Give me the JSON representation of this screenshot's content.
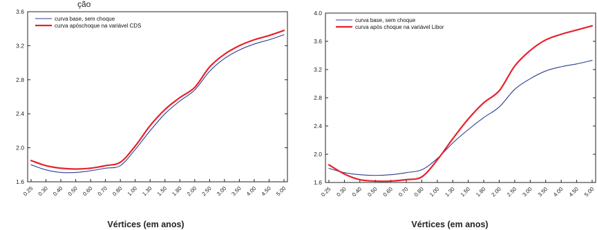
{
  "top_text": "ção",
  "chart_data": [
    {
      "type": "line",
      "title": "",
      "xlabel": "Vértices (em anos)",
      "ylabel": "",
      "ylim": [
        1.6,
        3.6
      ],
      "yticks": [
        "1.6",
        "2.0",
        "2.4",
        "2.8",
        "3.2",
        "3.6"
      ],
      "categories": [
        "0.25",
        "0.30",
        "0.40",
        "0.50",
        "0.60",
        "0.70",
        "0.80",
        "1.00",
        "1.30",
        "1.50",
        "1.80",
        "2.00",
        "2.50",
        "3.00",
        "3.50",
        "4.00",
        "4.50",
        "5.00"
      ],
      "grid": false,
      "legend": "top-left",
      "series": [
        {
          "name": "curva base, sem choque",
          "color": "#2b3a8f",
          "values": [
            1.8,
            1.74,
            1.71,
            1.71,
            1.73,
            1.76,
            1.79,
            1.98,
            2.2,
            2.4,
            2.55,
            2.68,
            2.9,
            3.05,
            3.15,
            3.22,
            3.27,
            3.33
          ]
        },
        {
          "name": "curva apóschoque na variável CDS",
          "color": "#e8202a",
          "values": [
            1.85,
            1.79,
            1.76,
            1.75,
            1.76,
            1.79,
            1.83,
            2.02,
            2.26,
            2.45,
            2.59,
            2.71,
            2.95,
            3.1,
            3.2,
            3.27,
            3.32,
            3.38
          ]
        }
      ]
    },
    {
      "type": "line",
      "title": "",
      "xlabel": "Vértices (em anos)",
      "ylabel": "",
      "ylim": [
        1.6,
        4.0
      ],
      "yticks": [
        "1.6",
        "2.0",
        "2.4",
        "2.8",
        "3.2",
        "3.6",
        "4.0"
      ],
      "categories": [
        "0.25",
        "0.30",
        "0.40",
        "0.50",
        "0.60",
        "0.70",
        "0.80",
        "1.00",
        "1.30",
        "1.50",
        "1.80",
        "2.00",
        "2.50",
        "3.00",
        "3.50",
        "4.00",
        "4.50",
        "5.00"
      ],
      "grid": false,
      "legend": "top-left",
      "series": [
        {
          "name": "curva base, sem choque",
          "color": "#2b3a8f",
          "values": [
            1.8,
            1.74,
            1.71,
            1.7,
            1.71,
            1.74,
            1.78,
            1.94,
            2.16,
            2.35,
            2.52,
            2.67,
            2.92,
            3.07,
            3.18,
            3.24,
            3.28,
            3.33
          ]
        },
        {
          "name": "curva após choque na variável Libor",
          "color": "#e8202a",
          "values": [
            1.85,
            1.72,
            1.64,
            1.62,
            1.62,
            1.64,
            1.68,
            1.92,
            2.22,
            2.5,
            2.73,
            2.9,
            3.25,
            3.47,
            3.62,
            3.7,
            3.76,
            3.82
          ]
        }
      ]
    }
  ]
}
